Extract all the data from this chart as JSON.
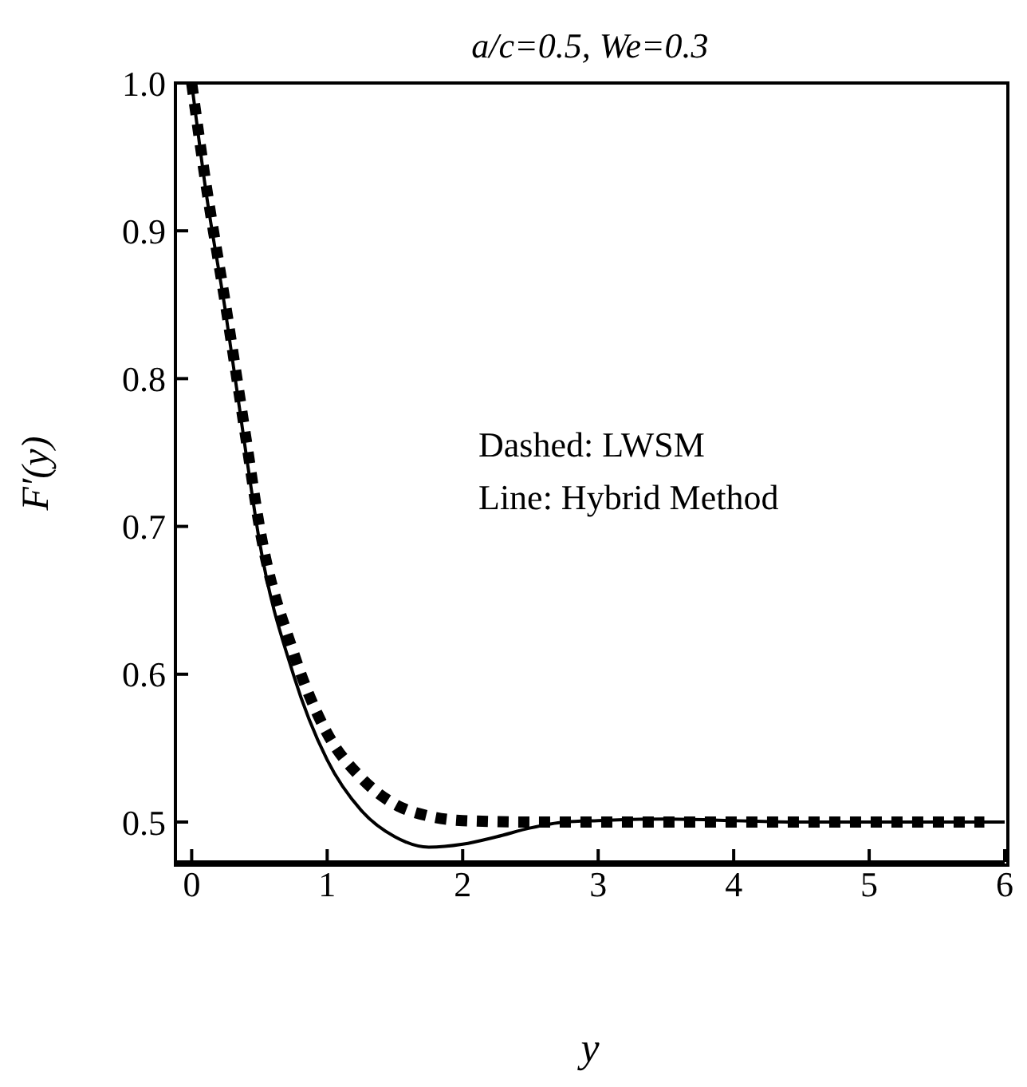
{
  "chart_data": {
    "type": "line",
    "title": "a/c=0.5, We=0.3",
    "xlabel": "y",
    "ylabel": "F′(y)",
    "annotations": [
      "Dashed: LWSM",
      "Line: Hybrid Method"
    ],
    "xlim": [
      -0.12,
      6
    ],
    "xticks": [
      0,
      1,
      2,
      3,
      4,
      5,
      6
    ],
    "ylim": [
      0.473,
      1
    ],
    "yticks": [
      0.5,
      0.6,
      0.7,
      0.8,
      0.9,
      {
        "value": 1,
        "label": "1.0"
      }
    ],
    "marker": "none",
    "series": [
      {
        "color": "#000000",
        "line_style": "dashed",
        "x": [
          0,
          0.1,
          0.25,
          0.4,
          0.5,
          0.75,
          1,
          1.25,
          1.5,
          1.75,
          2,
          2.5,
          3,
          4,
          5,
          5.85
        ],
        "values": [
          1,
          0.935,
          0.85,
          0.76,
          0.7,
          0.615,
          0.56,
          0.53,
          0.512,
          0.504,
          0.501,
          0.5,
          0.5,
          0.5,
          0.5,
          0.5
        ]
      },
      {
        "color": "#000000",
        "line_style": "solid",
        "x": [
          0,
          0.1,
          0.25,
          0.4,
          0.5,
          0.75,
          1,
          1.25,
          1.5,
          1.75,
          2,
          2.25,
          2.5,
          2.75,
          3,
          3.5,
          4,
          4.5,
          5,
          6
        ],
        "values": [
          1,
          0.93,
          0.845,
          0.75,
          0.69,
          0.6,
          0.542,
          0.508,
          0.49,
          0.483,
          0.485,
          0.49,
          0.496,
          0.5,
          0.501,
          0.502,
          0.501,
          0.5,
          0.5,
          0.5
        ]
      }
    ]
  }
}
